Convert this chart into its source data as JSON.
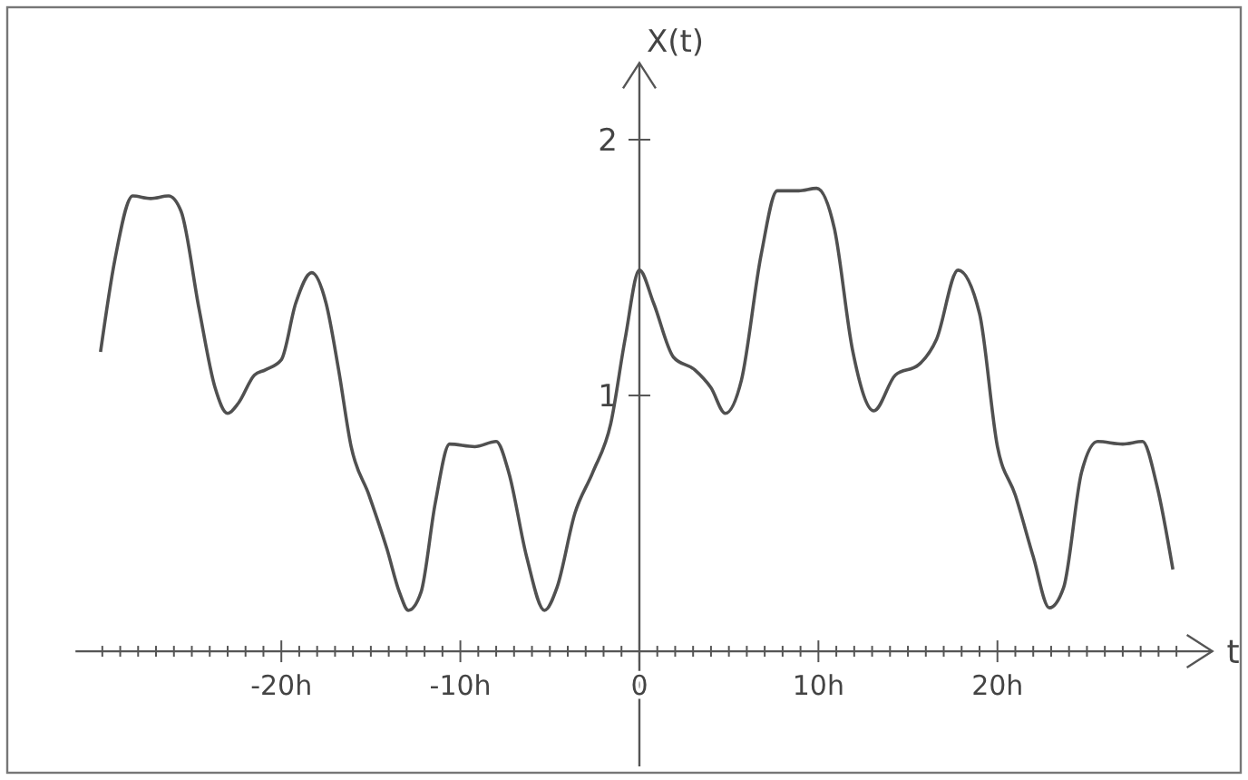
{
  "chart_data": {
    "type": "line",
    "xlabel": "t",
    "ylabel": "X(t)",
    "xlim": [
      -31.5,
      32
    ],
    "ylim": [
      -0.45,
      2.3
    ],
    "xticks": [
      {
        "value": -30,
        "label": null
      },
      {
        "value": -29,
        "label": null
      },
      {
        "value": -28,
        "label": null
      },
      {
        "value": -27,
        "label": null
      },
      {
        "value": -26,
        "label": null
      },
      {
        "value": -25,
        "label": null
      },
      {
        "value": -24,
        "label": null
      },
      {
        "value": -23,
        "label": null
      },
      {
        "value": -22,
        "label": null
      },
      {
        "value": -21,
        "label": null
      },
      {
        "value": -20,
        "label": "-20h"
      },
      {
        "value": -19,
        "label": null
      },
      {
        "value": -18,
        "label": null
      },
      {
        "value": -17,
        "label": null
      },
      {
        "value": -16,
        "label": null
      },
      {
        "value": -15,
        "label": null
      },
      {
        "value": -14,
        "label": null
      },
      {
        "value": -13,
        "label": null
      },
      {
        "value": -12,
        "label": null
      },
      {
        "value": -11,
        "label": null
      },
      {
        "value": -10,
        "label": "-10h"
      },
      {
        "value": -9,
        "label": null
      },
      {
        "value": -8,
        "label": null
      },
      {
        "value": -7,
        "label": null
      },
      {
        "value": -6,
        "label": null
      },
      {
        "value": -5,
        "label": null
      },
      {
        "value": -4,
        "label": null
      },
      {
        "value": -3,
        "label": null
      },
      {
        "value": -2,
        "label": null
      },
      {
        "value": -1,
        "label": null
      },
      {
        "value": 0,
        "label": "0"
      },
      {
        "value": 1,
        "label": null
      },
      {
        "value": 2,
        "label": null
      },
      {
        "value": 3,
        "label": null
      },
      {
        "value": 4,
        "label": null
      },
      {
        "value": 5,
        "label": null
      },
      {
        "value": 6,
        "label": null
      },
      {
        "value": 7,
        "label": null
      },
      {
        "value": 8,
        "label": null
      },
      {
        "value": 9,
        "label": null
      },
      {
        "value": 10,
        "label": "10h"
      },
      {
        "value": 11,
        "label": null
      },
      {
        "value": 12,
        "label": null
      },
      {
        "value": 13,
        "label": null
      },
      {
        "value": 14,
        "label": null
      },
      {
        "value": 15,
        "label": null
      },
      {
        "value": 16,
        "label": null
      },
      {
        "value": 17,
        "label": null
      },
      {
        "value": 18,
        "label": null
      },
      {
        "value": 19,
        "label": null
      },
      {
        "value": 20,
        "label": "20h"
      },
      {
        "value": 21,
        "label": null
      },
      {
        "value": 22,
        "label": null
      },
      {
        "value": 23,
        "label": null
      },
      {
        "value": 24,
        "label": null
      },
      {
        "value": 25,
        "label": null
      },
      {
        "value": 26,
        "label": null
      },
      {
        "value": 27,
        "label": null
      },
      {
        "value": 28,
        "label": null
      },
      {
        "value": 29,
        "label": null
      },
      {
        "value": 30,
        "label": null
      }
    ],
    "yticks": [
      1,
      2
    ],
    "grid": false,
    "marker": "none",
    "line_style": "solid",
    "series": [
      {
        "color": "#505050",
        "x": [
          -30.1,
          -29.3,
          -28.3,
          -27.3,
          -26.3,
          -25.6,
          -24.6,
          -23.7,
          -23.0,
          -22.4,
          -21.5,
          -20.9,
          -20.0,
          -19.2,
          -18.3,
          -17.5,
          -16.8,
          -16.1,
          -15.1,
          -14.1,
          -13.4,
          -12.9,
          -12.2,
          -11.4,
          -10.6,
          -9.2,
          -8.0,
          -7.3,
          -6.3,
          -5.3,
          -4.6,
          -3.6,
          -2.6,
          -1.6,
          -0.8,
          0,
          0.8,
          1.9,
          3.1,
          4.0,
          4.8,
          5.7,
          6.8,
          7.7,
          8.9,
          9.9,
          10.9,
          11.9,
          13.1,
          14.3,
          15.6,
          16.6,
          17.8,
          19.0,
          20.0,
          21.0,
          22.0,
          22.9,
          23.7,
          24.7,
          25.6,
          27.0,
          28.1,
          28.9,
          29.8
        ],
        "values": [
          1.17,
          1.53,
          1.78,
          1.77,
          1.78,
          1.72,
          1.34,
          1.03,
          0.93,
          0.97,
          1.08,
          1.1,
          1.14,
          1.36,
          1.48,
          1.36,
          1.1,
          0.8,
          0.61,
          0.4,
          0.23,
          0.16,
          0.23,
          0.58,
          0.81,
          0.8,
          0.82,
          0.7,
          0.37,
          0.16,
          0.25,
          0.54,
          0.7,
          0.89,
          1.22,
          1.49,
          1.36,
          1.15,
          1.1,
          1.03,
          0.93,
          1.06,
          1.55,
          1.8,
          1.8,
          1.81,
          1.65,
          1.18,
          0.94,
          1.08,
          1.12,
          1.22,
          1.49,
          1.32,
          0.8,
          0.61,
          0.37,
          0.17,
          0.25,
          0.7,
          0.82,
          0.81,
          0.82,
          0.65,
          0.32
        ]
      }
    ]
  }
}
